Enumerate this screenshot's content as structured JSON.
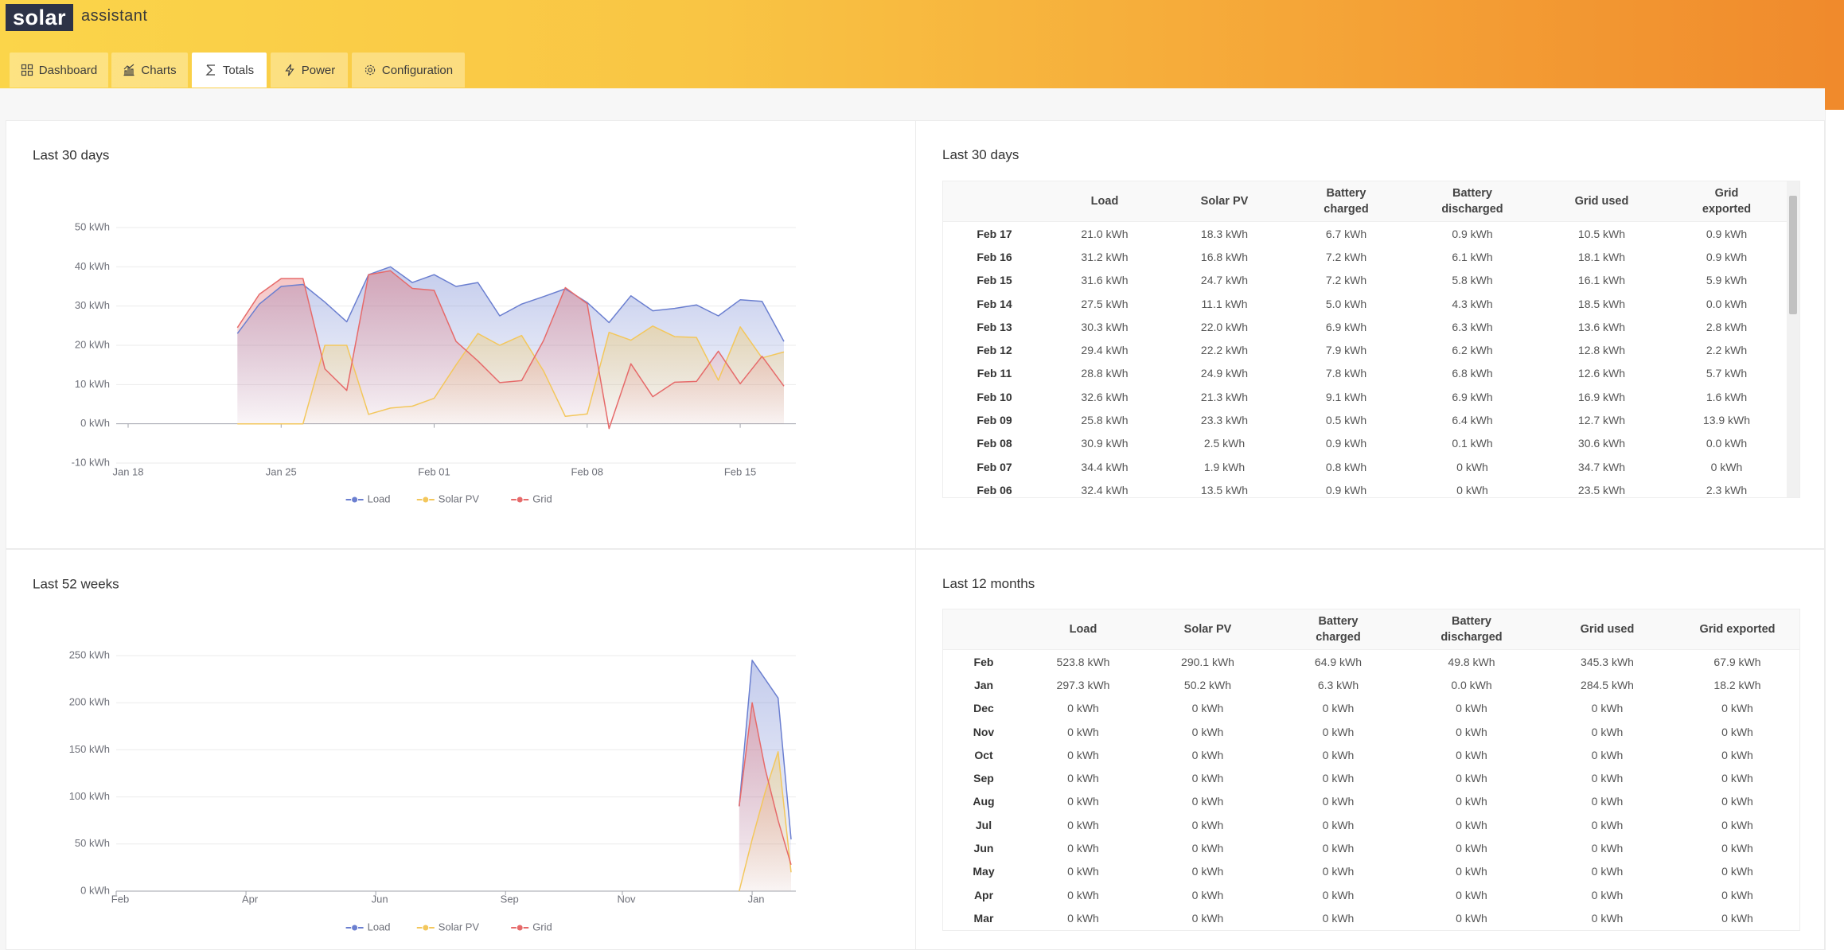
{
  "header": {
    "logo": "solar",
    "logo_suffix": "assistant"
  },
  "tabs": [
    "Dashboard",
    "Charts",
    "Totals",
    "Power",
    "Configuration"
  ],
  "active_tab": 2,
  "chart_data": [
    {
      "type": "area",
      "title": "Last 30 days",
      "x": [
        "Jan 23",
        "Jan 24",
        "Jan 25",
        "Jan 26",
        "Jan 27",
        "Jan 28",
        "Jan 29",
        "Jan 30",
        "Jan 31",
        "Feb 01",
        "Feb 02",
        "Feb 03",
        "Feb 04",
        "Feb 05",
        "Feb 06",
        "Feb 07",
        "Feb 08",
        "Feb 09",
        "Feb 10",
        "Feb 11",
        "Feb 12",
        "Feb 13",
        "Feb 14",
        "Feb 15",
        "Feb 16",
        "Feb 17"
      ],
      "xlim": [
        "Jan 18",
        "Feb 17"
      ],
      "xticks": [
        "Jan 18",
        "Jan 25",
        "Feb 01",
        "Feb 08",
        "Feb 15"
      ],
      "ylim": [
        -10,
        50
      ],
      "yticks": [
        {
          "value": -10,
          "label": "-10 kWh"
        },
        {
          "value": 0,
          "label": "0 kWh"
        },
        {
          "value": 10,
          "label": "10 kWh"
        },
        {
          "value": 20,
          "label": "20 kWh"
        },
        {
          "value": 30,
          "label": "30 kWh"
        },
        {
          "value": 40,
          "label": "40 kWh"
        },
        {
          "value": 50,
          "label": "50 kWh"
        }
      ],
      "grid": true,
      "legend": "bottom",
      "series": [
        {
          "name": "Load",
          "color": "#6b7fd0",
          "values": [
            23,
            30.5,
            35,
            35.5,
            31,
            26,
            38,
            40,
            36,
            38,
            35,
            36,
            27.5,
            30.5,
            32.4,
            34.4,
            30.9,
            25.8,
            32.6,
            28.8,
            29.4,
            30.3,
            27.5,
            31.6,
            31.2,
            21.0
          ]
        },
        {
          "name": "Solar PV",
          "color": "#f3c75c",
          "values": [
            0,
            0,
            0,
            0,
            20,
            20,
            2.4,
            4,
            4.5,
            6.5,
            15,
            23,
            20,
            22.5,
            13.5,
            1.9,
            2.5,
            23.3,
            21.3,
            24.9,
            22.2,
            22.0,
            11.1,
            24.7,
            16.8,
            18.3
          ]
        },
        {
          "name": "Grid",
          "color": "#e66a6a",
          "values": [
            24.5,
            33,
            37,
            37,
            14,
            8.5,
            38,
            39,
            34.5,
            34,
            21,
            16,
            10.5,
            11,
            21.2,
            34.7,
            30.6,
            -1.2,
            15.3,
            6.9,
            10.6,
            10.8,
            18.5,
            10.2,
            17.2,
            9.6
          ]
        }
      ]
    },
    {
      "type": "area",
      "title": "Last 52 weeks",
      "categories": [
        "Feb",
        null,
        null,
        null,
        null,
        null,
        null,
        null,
        null,
        null,
        "Apr",
        null,
        null,
        null,
        null,
        null,
        null,
        null,
        null,
        null,
        "Jun",
        null,
        null,
        null,
        null,
        null,
        null,
        null,
        null,
        null,
        "Sep",
        null,
        null,
        null,
        null,
        null,
        null,
        null,
        null,
        "Nov",
        null,
        null,
        null,
        null,
        null,
        null,
        null,
        null,
        null,
        "Jan",
        null,
        null,
        null
      ],
      "ylim": [
        0,
        250
      ],
      "yticks": [
        {
          "value": 0,
          "label": "0 kWh"
        },
        {
          "value": 50,
          "label": "50 kWh"
        },
        {
          "value": 100,
          "label": "100 kWh"
        },
        {
          "value": 150,
          "label": "150 kWh"
        },
        {
          "value": 200,
          "label": "200 kWh"
        },
        {
          "value": 250,
          "label": "250 kWh"
        }
      ],
      "grid": true,
      "legend": "bottom",
      "series": [
        {
          "name": "Load",
          "color": "#6b7fd0",
          "values": [
            null,
            null,
            null,
            null,
            null,
            null,
            null,
            null,
            null,
            null,
            null,
            null,
            null,
            null,
            null,
            null,
            null,
            null,
            null,
            null,
            null,
            null,
            null,
            null,
            null,
            null,
            null,
            null,
            null,
            null,
            null,
            null,
            null,
            null,
            null,
            null,
            null,
            null,
            null,
            null,
            null,
            null,
            null,
            null,
            null,
            null,
            null,
            null,
            90,
            245,
            225,
            205,
            55
          ]
        },
        {
          "name": "Solar PV",
          "color": "#f3c75c",
          "values": [
            null,
            null,
            null,
            null,
            null,
            null,
            null,
            null,
            null,
            null,
            null,
            null,
            null,
            null,
            null,
            null,
            null,
            null,
            null,
            null,
            null,
            null,
            null,
            null,
            null,
            null,
            null,
            null,
            null,
            null,
            null,
            null,
            null,
            null,
            null,
            null,
            null,
            null,
            null,
            null,
            null,
            null,
            null,
            null,
            null,
            null,
            null,
            null,
            0,
            55,
            105,
            148,
            20
          ]
        },
        {
          "name": "Grid",
          "color": "#e66a6a",
          "values": [
            null,
            null,
            null,
            null,
            null,
            null,
            null,
            null,
            null,
            null,
            null,
            null,
            null,
            null,
            null,
            null,
            null,
            null,
            null,
            null,
            null,
            null,
            null,
            null,
            null,
            null,
            null,
            null,
            null,
            null,
            null,
            null,
            null,
            null,
            null,
            null,
            null,
            null,
            null,
            null,
            null,
            null,
            null,
            null,
            null,
            null,
            null,
            null,
            90,
            200,
            130,
            75,
            28
          ]
        }
      ]
    }
  ],
  "tables": [
    {
      "title": "Last 30 days",
      "columns": [
        "Load",
        "Solar PV",
        "Battery charged",
        "Battery discharged",
        "Grid used",
        "Grid exported"
      ],
      "rows": [
        [
          "Feb 17",
          "21.0 kWh",
          "18.3 kWh",
          "6.7 kWh",
          "0.9 kWh",
          "10.5 kWh",
          "0.9 kWh"
        ],
        [
          "Feb 16",
          "31.2 kWh",
          "16.8 kWh",
          "7.2 kWh",
          "6.1 kWh",
          "18.1 kWh",
          "0.9 kWh"
        ],
        [
          "Feb 15",
          "31.6 kWh",
          "24.7 kWh",
          "7.2 kWh",
          "5.8 kWh",
          "16.1 kWh",
          "5.9 kWh"
        ],
        [
          "Feb 14",
          "27.5 kWh",
          "11.1 kWh",
          "5.0 kWh",
          "4.3 kWh",
          "18.5 kWh",
          "0.0 kWh"
        ],
        [
          "Feb 13",
          "30.3 kWh",
          "22.0 kWh",
          "6.9 kWh",
          "6.3 kWh",
          "13.6 kWh",
          "2.8 kWh"
        ],
        [
          "Feb 12",
          "29.4 kWh",
          "22.2 kWh",
          "7.9 kWh",
          "6.2 kWh",
          "12.8 kWh",
          "2.2 kWh"
        ],
        [
          "Feb 11",
          "28.8 kWh",
          "24.9 kWh",
          "7.8 kWh",
          "6.8 kWh",
          "12.6 kWh",
          "5.7 kWh"
        ],
        [
          "Feb 10",
          "32.6 kWh",
          "21.3 kWh",
          "9.1 kWh",
          "6.9 kWh",
          "16.9 kWh",
          "1.6 kWh"
        ],
        [
          "Feb 09",
          "25.8 kWh",
          "23.3 kWh",
          "0.5 kWh",
          "6.4 kWh",
          "12.7 kWh",
          "13.9 kWh"
        ],
        [
          "Feb 08",
          "30.9 kWh",
          "2.5 kWh",
          "0.9 kWh",
          "0.1 kWh",
          "30.6 kWh",
          "0.0 kWh"
        ],
        [
          "Feb 07",
          "34.4 kWh",
          "1.9 kWh",
          "0.8 kWh",
          "0 kWh",
          "34.7 kWh",
          "0 kWh"
        ],
        [
          "Feb 06",
          "32.4 kWh",
          "13.5 kWh",
          "0.9 kWh",
          "0 kWh",
          "23.5 kWh",
          "2.3 kWh"
        ]
      ]
    },
    {
      "title": "Last 12 months",
      "columns": [
        "Load",
        "Solar PV",
        "Battery charged",
        "Battery discharged",
        "Grid used",
        "Grid exported"
      ],
      "rows": [
        [
          "Feb",
          "523.8 kWh",
          "290.1 kWh",
          "64.9 kWh",
          "49.8 kWh",
          "345.3 kWh",
          "67.9 kWh"
        ],
        [
          "Jan",
          "297.3 kWh",
          "50.2 kWh",
          "6.3 kWh",
          "0.0 kWh",
          "284.5 kWh",
          "18.2 kWh"
        ],
        [
          "Dec",
          "0 kWh",
          "0 kWh",
          "0 kWh",
          "0 kWh",
          "0 kWh",
          "0 kWh"
        ],
        [
          "Nov",
          "0 kWh",
          "0 kWh",
          "0 kWh",
          "0 kWh",
          "0 kWh",
          "0 kWh"
        ],
        [
          "Oct",
          "0 kWh",
          "0 kWh",
          "0 kWh",
          "0 kWh",
          "0 kWh",
          "0 kWh"
        ],
        [
          "Sep",
          "0 kWh",
          "0 kWh",
          "0 kWh",
          "0 kWh",
          "0 kWh",
          "0 kWh"
        ],
        [
          "Aug",
          "0 kWh",
          "0 kWh",
          "0 kWh",
          "0 kWh",
          "0 kWh",
          "0 kWh"
        ],
        [
          "Jul",
          "0 kWh",
          "0 kWh",
          "0 kWh",
          "0 kWh",
          "0 kWh",
          "0 kWh"
        ],
        [
          "Jun",
          "0 kWh",
          "0 kWh",
          "0 kWh",
          "0 kWh",
          "0 kWh",
          "0 kWh"
        ],
        [
          "May",
          "0 kWh",
          "0 kWh",
          "0 kWh",
          "0 kWh",
          "0 kWh",
          "0 kWh"
        ],
        [
          "Apr",
          "0 kWh",
          "0 kWh",
          "0 kWh",
          "0 kWh",
          "0 kWh",
          "0 kWh"
        ],
        [
          "Mar",
          "0 kWh",
          "0 kWh",
          "0 kWh",
          "0 kWh",
          "0 kWh",
          "0 kWh"
        ]
      ]
    }
  ]
}
